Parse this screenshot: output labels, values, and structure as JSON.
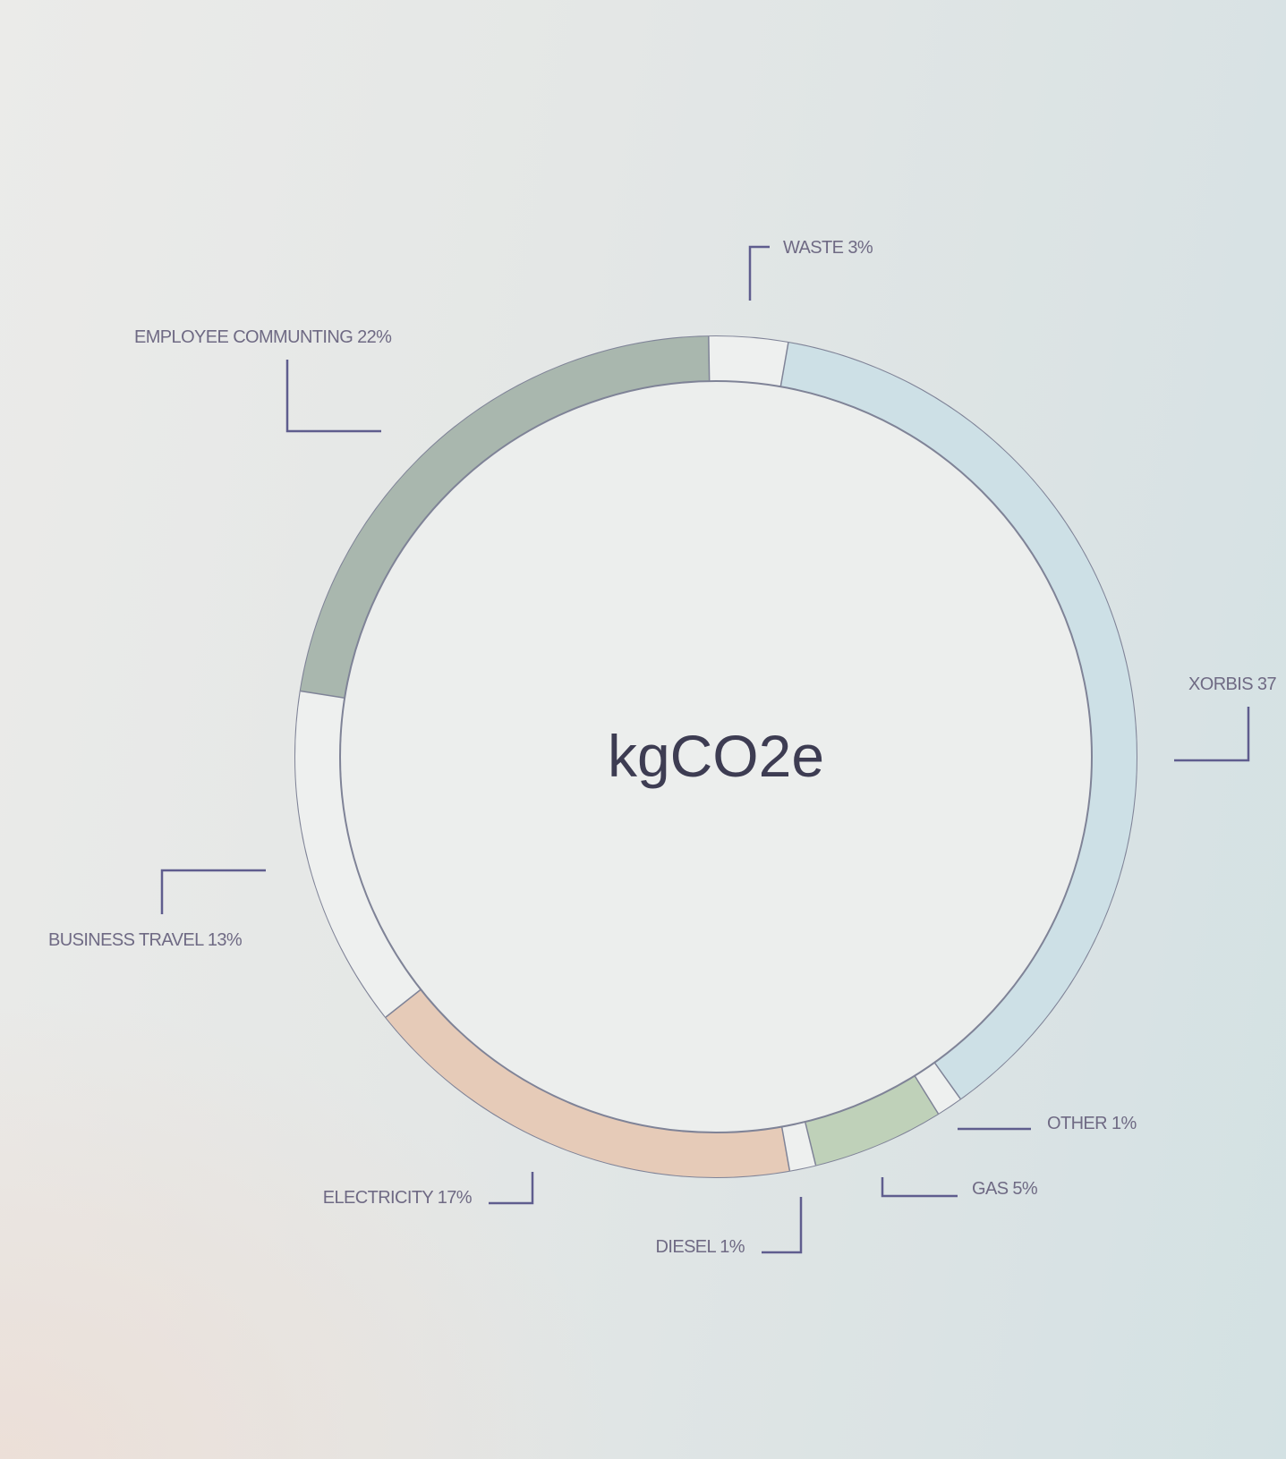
{
  "chart_data": {
    "type": "pie",
    "center_label": "kgCO2e",
    "slices": [
      {
        "name": "WASTE",
        "value": 3,
        "label": "WASTE 3%",
        "color": "#eef0ef"
      },
      {
        "name": "XORBIS",
        "value": 37,
        "label": "XORBIS 37",
        "color": "#cde0e6"
      },
      {
        "name": "OTHER",
        "value": 1,
        "label": "OTHER 1%",
        "color": "#eef0ef"
      },
      {
        "name": "GAS",
        "value": 5,
        "label": "GAS 5%",
        "color": "#bfd1b9"
      },
      {
        "name": "DIESEL",
        "value": 1,
        "label": "DIESEL 1%",
        "color": "#eef0ef"
      },
      {
        "name": "ELECTRICITY",
        "value": 17,
        "label": "ELECTRICITY 17%",
        "color": "#e6cbb8"
      },
      {
        "name": "BUSINESS TRAVEL",
        "value": 13,
        "label": "BUSINESS TRAVEL 13%",
        "color": "#eef0ef"
      },
      {
        "name": "EMPLOYEE COMMUNTING",
        "value": 22,
        "label": "EMPLOYEE COMMUNTING 22%",
        "color": "#a9b7ae"
      }
    ]
  }
}
